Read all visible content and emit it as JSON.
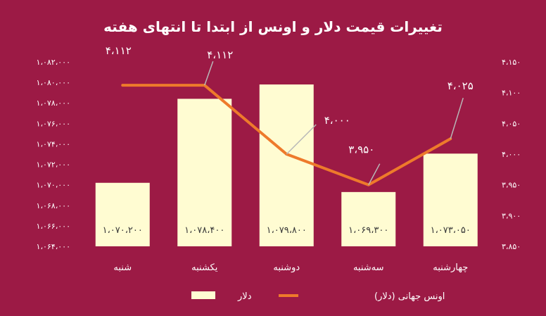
{
  "chart_data": {
    "type": "bar",
    "title": "تغییرات قیمت دلار و اونس از ابتدا تا انتهای هفته",
    "categories": [
      "شنبه",
      "یکشنبه",
      "دوشنبه",
      "سه‌شنبه",
      "چهارشنبه"
    ],
    "series": [
      {
        "name": "دلار",
        "type": "bar",
        "axis": "left",
        "values": [
          1070200,
          1078400,
          1079800,
          1069300,
          1073050
        ],
        "labels": [
          "۱،۰۷۰،۲۰۰",
          "۱،۰۷۸،۴۰۰",
          "۱،۰۷۹،۸۰۰",
          "۱،۰۶۹،۳۰۰",
          "۱،۰۷۳،۰۵۰"
        ],
        "color": "#fffcd2"
      },
      {
        "name": "اونس جهانی (دلار)",
        "type": "line",
        "axis": "right",
        "values": [
          4112,
          4112,
          4000,
          3950,
          4025
        ],
        "labels": [
          "۴،۱۱۲",
          "۴،۱۱۲",
          "۴،۰۰۰",
          "۳،۹۵۰",
          "۴،۰۲۵"
        ],
        "color": "#ee7a2b"
      }
    ],
    "left_axis": {
      "ylim": [
        1064000,
        1082000
      ],
      "ticks": [
        1064000,
        1066000,
        1068000,
        1070000,
        1072000,
        1074000,
        1076000,
        1078000,
        1080000,
        1082000
      ],
      "tick_labels": [
        "۱،۰۶۴،۰۰۰",
        "۱،۰۶۶،۰۰۰",
        "۱،۰۶۸،۰۰۰",
        "۱،۰۷۰،۰۰۰",
        "۱،۰۷۲،۰۰۰",
        "۱،۰۷۴،۰۰۰",
        "۱،۰۷۶،۰۰۰",
        "۱،۰۷۸،۰۰۰",
        "۱،۰۸۰،۰۰۰",
        "۱،۰۸۲،۰۰۰"
      ]
    },
    "right_axis": {
      "ylim": [
        3850,
        4150
      ],
      "ticks": [
        3850,
        3900,
        3950,
        4000,
        4050,
        4100,
        4150
      ],
      "tick_labels": [
        "۳،۸۵۰",
        "۳،۹۰۰",
        "۳،۹۵۰",
        "۴،۰۰۰",
        "۴،۰۵۰",
        "۴،۱۰۰",
        "۴،۱۵۰"
      ]
    },
    "grid": false,
    "legend_position": "bottom",
    "legend": [
      {
        "label": "دلار",
        "marker": "bar",
        "color": "#fffcd2"
      },
      {
        "label": "اونس جهانی (دلار)",
        "marker": "line",
        "color": "#ee7a2b"
      }
    ]
  }
}
